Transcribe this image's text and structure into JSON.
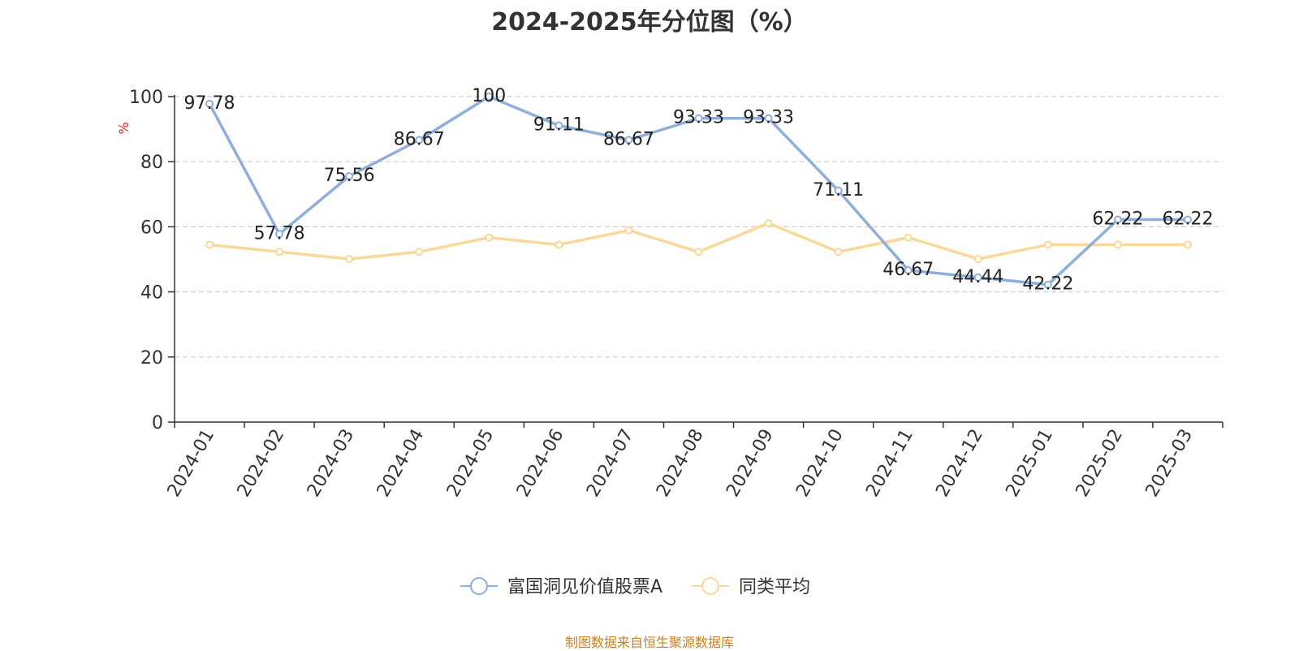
{
  "chart_data": {
    "type": "line",
    "title": "2024-2025年分位图（%）",
    "ylabel": "%",
    "xlabel": "",
    "ylim": [
      0,
      100
    ],
    "yticks": [
      0,
      20,
      40,
      60,
      80,
      100
    ],
    "grid": true,
    "legend_position": "bottom",
    "categories": [
      "2024-01",
      "2024-02",
      "2024-03",
      "2024-04",
      "2024-05",
      "2024-06",
      "2024-07",
      "2024-08",
      "2024-09",
      "2024-10",
      "2024-11",
      "2024-12",
      "2025-01",
      "2025-02",
      "2025-03"
    ],
    "series": [
      {
        "name": "富国洞见价值股票A",
        "color": "#8eaedb",
        "show_labels": true,
        "values": [
          97.78,
          57.78,
          75.56,
          86.67,
          100,
          91.11,
          86.67,
          93.33,
          93.33,
          71.11,
          46.67,
          44.44,
          42.22,
          62.22,
          62.22
        ]
      },
      {
        "name": "同类平均",
        "color": "#fbd898",
        "show_labels": false,
        "values": [
          54.5,
          52.3,
          50.1,
          52.3,
          56.7,
          54.5,
          58.9,
          52.3,
          61.1,
          52.3,
          56.7,
          50.1,
          54.5,
          54.5,
          54.5
        ]
      }
    ]
  },
  "footer": {
    "source": "制图数据来自恒生聚源数据库"
  }
}
